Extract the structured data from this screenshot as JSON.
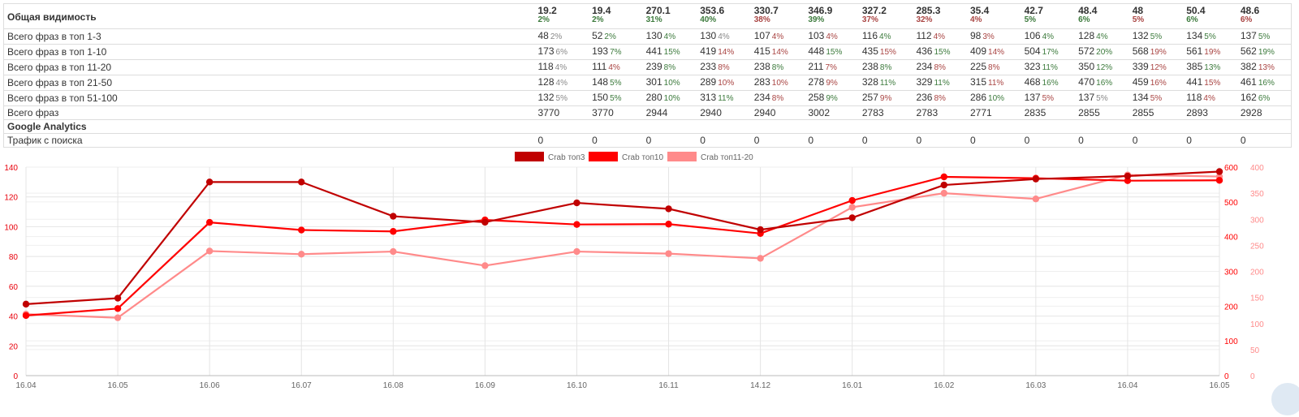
{
  "table": {
    "header": {
      "label": "Общая видимость",
      "values": [
        "19.2",
        "19.4",
        "270.1",
        "353.6",
        "330.7",
        "346.9",
        "327.2",
        "285.3",
        "35.4",
        "42.7",
        "48.4",
        "48",
        "50.4",
        "48.6"
      ],
      "percents": [
        {
          "t": "2%",
          "c": "good"
        },
        {
          "t": "2%",
          "c": "good"
        },
        {
          "t": "31%",
          "c": "good"
        },
        {
          "t": "40%",
          "c": "good"
        },
        {
          "t": "38%",
          "c": "bad"
        },
        {
          "t": "39%",
          "c": "good"
        },
        {
          "t": "37%",
          "c": "bad"
        },
        {
          "t": "32%",
          "c": "bad"
        },
        {
          "t": "4%",
          "c": "bad"
        },
        {
          "t": "5%",
          "c": "good"
        },
        {
          "t": "6%",
          "c": "good"
        },
        {
          "t": "5%",
          "c": "bad"
        },
        {
          "t": "6%",
          "c": "good"
        },
        {
          "t": "6%",
          "c": "bad"
        }
      ]
    },
    "rows": [
      {
        "label": "Всего фраз в топ 1-3",
        "cells": [
          {
            "v": "48",
            "p": "2%",
            "c": "neutral"
          },
          {
            "v": "52",
            "p": "2%",
            "c": "good"
          },
          {
            "v": "130",
            "p": "4%",
            "c": "good"
          },
          {
            "v": "130",
            "p": "4%",
            "c": "neutral"
          },
          {
            "v": "107",
            "p": "4%",
            "c": "bad"
          },
          {
            "v": "103",
            "p": "4%",
            "c": "bad"
          },
          {
            "v": "116",
            "p": "4%",
            "c": "good"
          },
          {
            "v": "112",
            "p": "4%",
            "c": "bad"
          },
          {
            "v": "98",
            "p": "3%",
            "c": "bad"
          },
          {
            "v": "106",
            "p": "4%",
            "c": "good"
          },
          {
            "v": "128",
            "p": "4%",
            "c": "good"
          },
          {
            "v": "132",
            "p": "5%",
            "c": "good"
          },
          {
            "v": "134",
            "p": "5%",
            "c": "good"
          },
          {
            "v": "137",
            "p": "5%",
            "c": "good"
          }
        ]
      },
      {
        "label": "Всего фраз в топ 1-10",
        "cells": [
          {
            "v": "173",
            "p": "6%",
            "c": "neutral"
          },
          {
            "v": "193",
            "p": "7%",
            "c": "good"
          },
          {
            "v": "441",
            "p": "15%",
            "c": "good"
          },
          {
            "v": "419",
            "p": "14%",
            "c": "bad"
          },
          {
            "v": "415",
            "p": "14%",
            "c": "bad"
          },
          {
            "v": "448",
            "p": "15%",
            "c": "good"
          },
          {
            "v": "435",
            "p": "15%",
            "c": "bad"
          },
          {
            "v": "436",
            "p": "15%",
            "c": "good"
          },
          {
            "v": "409",
            "p": "14%",
            "c": "bad"
          },
          {
            "v": "504",
            "p": "17%",
            "c": "good"
          },
          {
            "v": "572",
            "p": "20%",
            "c": "good"
          },
          {
            "v": "568",
            "p": "19%",
            "c": "bad"
          },
          {
            "v": "561",
            "p": "19%",
            "c": "bad"
          },
          {
            "v": "562",
            "p": "19%",
            "c": "good"
          }
        ]
      },
      {
        "label": "Всего фраз в топ 11-20",
        "cells": [
          {
            "v": "118",
            "p": "4%",
            "c": "neutral"
          },
          {
            "v": "111",
            "p": "4%",
            "c": "bad"
          },
          {
            "v": "239",
            "p": "8%",
            "c": "good"
          },
          {
            "v": "233",
            "p": "8%",
            "c": "bad"
          },
          {
            "v": "238",
            "p": "8%",
            "c": "good"
          },
          {
            "v": "211",
            "p": "7%",
            "c": "bad"
          },
          {
            "v": "238",
            "p": "8%",
            "c": "good"
          },
          {
            "v": "234",
            "p": "8%",
            "c": "bad"
          },
          {
            "v": "225",
            "p": "8%",
            "c": "bad"
          },
          {
            "v": "323",
            "p": "11%",
            "c": "good"
          },
          {
            "v": "350",
            "p": "12%",
            "c": "good"
          },
          {
            "v": "339",
            "p": "12%",
            "c": "bad"
          },
          {
            "v": "385",
            "p": "13%",
            "c": "good"
          },
          {
            "v": "382",
            "p": "13%",
            "c": "bad"
          }
        ]
      },
      {
        "label": "Всего фраз в топ 21-50",
        "cells": [
          {
            "v": "128",
            "p": "4%",
            "c": "neutral"
          },
          {
            "v": "148",
            "p": "5%",
            "c": "good"
          },
          {
            "v": "301",
            "p": "10%",
            "c": "good"
          },
          {
            "v": "289",
            "p": "10%",
            "c": "bad"
          },
          {
            "v": "283",
            "p": "10%",
            "c": "bad"
          },
          {
            "v": "278",
            "p": "9%",
            "c": "bad"
          },
          {
            "v": "328",
            "p": "11%",
            "c": "good"
          },
          {
            "v": "329",
            "p": "11%",
            "c": "good"
          },
          {
            "v": "315",
            "p": "11%",
            "c": "bad"
          },
          {
            "v": "468",
            "p": "16%",
            "c": "good"
          },
          {
            "v": "470",
            "p": "16%",
            "c": "good"
          },
          {
            "v": "459",
            "p": "16%",
            "c": "bad"
          },
          {
            "v": "441",
            "p": "15%",
            "c": "bad"
          },
          {
            "v": "461",
            "p": "16%",
            "c": "good"
          }
        ]
      },
      {
        "label": "Всего фраз в топ 51-100",
        "cells": [
          {
            "v": "132",
            "p": "5%",
            "c": "neutral"
          },
          {
            "v": "150",
            "p": "5%",
            "c": "good"
          },
          {
            "v": "280",
            "p": "10%",
            "c": "good"
          },
          {
            "v": "313",
            "p": "11%",
            "c": "good"
          },
          {
            "v": "234",
            "p": "8%",
            "c": "bad"
          },
          {
            "v": "258",
            "p": "9%",
            "c": "good"
          },
          {
            "v": "257",
            "p": "9%",
            "c": "bad"
          },
          {
            "v": "236",
            "p": "8%",
            "c": "bad"
          },
          {
            "v": "286",
            "p": "10%",
            "c": "good"
          },
          {
            "v": "137",
            "p": "5%",
            "c": "bad"
          },
          {
            "v": "137",
            "p": "5%",
            "c": "neutral"
          },
          {
            "v": "134",
            "p": "5%",
            "c": "bad"
          },
          {
            "v": "118",
            "p": "4%",
            "c": "bad"
          },
          {
            "v": "162",
            "p": "6%",
            "c": "good"
          }
        ]
      },
      {
        "label": "Всего фраз",
        "cells": [
          {
            "v": "3770"
          },
          {
            "v": "3770"
          },
          {
            "v": "2944"
          },
          {
            "v": "2940"
          },
          {
            "v": "2940"
          },
          {
            "v": "3002"
          },
          {
            "v": "2783"
          },
          {
            "v": "2783"
          },
          {
            "v": "2771"
          },
          {
            "v": "2835"
          },
          {
            "v": "2855"
          },
          {
            "v": "2855"
          },
          {
            "v": "2893"
          },
          {
            "v": "2928"
          }
        ]
      },
      {
        "label": "Google Analytics",
        "section": true,
        "cells": []
      },
      {
        "label": "Трафик с поиска",
        "cells": [
          {
            "v": "0"
          },
          {
            "v": "0"
          },
          {
            "v": "0"
          },
          {
            "v": "0"
          },
          {
            "v": "0"
          },
          {
            "v": "0"
          },
          {
            "v": "0"
          },
          {
            "v": "0"
          },
          {
            "v": "0"
          },
          {
            "v": "0"
          },
          {
            "v": "0"
          },
          {
            "v": "0"
          },
          {
            "v": "0"
          },
          {
            "v": "0"
          }
        ]
      }
    ]
  },
  "chart_data": {
    "type": "line",
    "categories": [
      "16.04",
      "16.05",
      "16.06",
      "16.07",
      "16.08",
      "16.09",
      "16.10",
      "16.11",
      "14.12",
      "16.01",
      "16.02",
      "16.03",
      "16.04",
      "16.05"
    ],
    "legend_position": "top-center",
    "grid": true,
    "left_axis": {
      "ylim": [
        0,
        140
      ],
      "ticks": [
        0,
        20,
        40,
        60,
        80,
        100,
        120,
        140
      ],
      "color": "#e8000b"
    },
    "right_axes": [
      {
        "ylim": [
          0,
          600
        ],
        "ticks": [
          0,
          100,
          200,
          300,
          400,
          500,
          600
        ],
        "color": "#ff0000"
      },
      {
        "ylim": [
          0,
          400
        ],
        "ticks": [
          0,
          50,
          100,
          150,
          200,
          250,
          300,
          350,
          400
        ],
        "color": "#ff8a8a"
      }
    ],
    "series": [
      {
        "name": "Crab топ3",
        "color": "#c00000",
        "axis": 0,
        "values": [
          48,
          52,
          130,
          130,
          107,
          103,
          116,
          112,
          98,
          106,
          128,
          132,
          134,
          137
        ]
      },
      {
        "name": "Crab топ10",
        "color": "#ff0000",
        "axis": 1,
        "values": [
          173,
          193,
          441,
          419,
          415,
          448,
          435,
          436,
          409,
          504,
          572,
          568,
          561,
          562
        ]
      },
      {
        "name": "Crab топ11-20",
        "color": "#ff8a8a",
        "axis": 2,
        "values": [
          118,
          111,
          239,
          233,
          238,
          211,
          238,
          234,
          225,
          323,
          350,
          339,
          385,
          382
        ]
      }
    ]
  }
}
